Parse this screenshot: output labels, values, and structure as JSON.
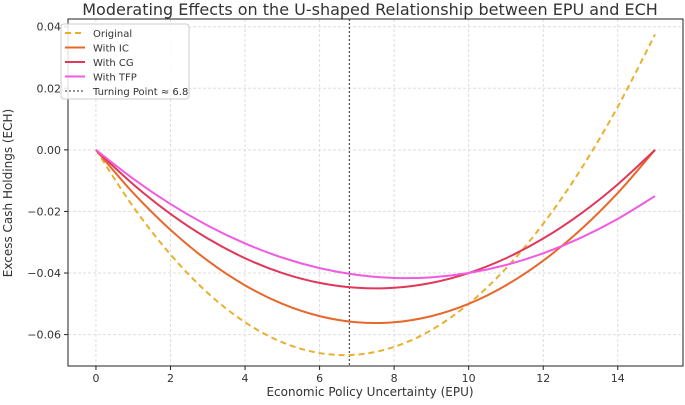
{
  "chart_data": {
    "type": "line",
    "title": "Moderating Effects on the U-shaped Relationship between EPU and ECH",
    "xlabel": "Economic Policy Uncertainty (EPU)",
    "ylabel": "Excess Cash Holdings (ECH)",
    "xlim": [
      -0.75,
      15.75
    ],
    "ylim": [
      -0.0702,
      0.0425
    ],
    "xticks": [
      0,
      2,
      4,
      6,
      8,
      10,
      12,
      14
    ],
    "xtick_labels": [
      "0",
      "2",
      "4",
      "6",
      "8",
      "10",
      "12",
      "14"
    ],
    "yticks": [
      -0.06,
      -0.04,
      -0.02,
      0.0,
      0.02,
      0.04
    ],
    "ytick_labels": [
      "−0.06",
      "−0.04",
      "−0.02",
      "0.00",
      "0.02",
      "0.04"
    ],
    "grid": true,
    "legend_position": "top-left",
    "x": [
      0,
      1,
      2,
      3,
      4,
      5,
      6,
      7,
      8,
      9,
      10,
      11,
      12,
      13,
      14,
      15
    ],
    "series": [
      {
        "name": "Original",
        "color": "#e8b030",
        "style": "dashed",
        "values": [
          0,
          -0.0185,
          -0.034,
          -0.0465,
          -0.056,
          -0.0625,
          -0.066,
          -0.0665,
          -0.064,
          -0.0585,
          -0.05,
          -0.0385,
          -0.024,
          -0.0065,
          0.014,
          0.0375
        ]
      },
      {
        "name": "With IC",
        "color": "#e8672a",
        "style": "solid",
        "values": [
          0,
          -0.014,
          -0.026,
          -0.036,
          -0.044,
          -0.05,
          -0.054,
          -0.056,
          -0.056,
          -0.054,
          -0.05,
          -0.044,
          -0.036,
          -0.026,
          -0.014,
          0
        ]
      },
      {
        "name": "With CG",
        "color": "#e0375a",
        "style": "solid",
        "values": [
          0,
          -0.0112,
          -0.0208,
          -0.0288,
          -0.0352,
          -0.04,
          -0.0432,
          -0.0448,
          -0.0448,
          -0.0432,
          -0.04,
          -0.0352,
          -0.0288,
          -0.0208,
          -0.0112,
          0
        ]
      },
      {
        "name": "With TFP",
        "color": "#f05be0",
        "style": "solid",
        "values": [
          0,
          -0.0094,
          -0.0176,
          -0.0246,
          -0.0304,
          -0.035,
          -0.0384,
          -0.0406,
          -0.0416,
          -0.0414,
          -0.04,
          -0.0374,
          -0.0336,
          -0.0286,
          -0.0224,
          -0.015
        ]
      }
    ],
    "vline": {
      "name": "Turning Point ≈ 6.8",
      "x": 6.8,
      "color": "#555555",
      "style": "dotted"
    }
  }
}
